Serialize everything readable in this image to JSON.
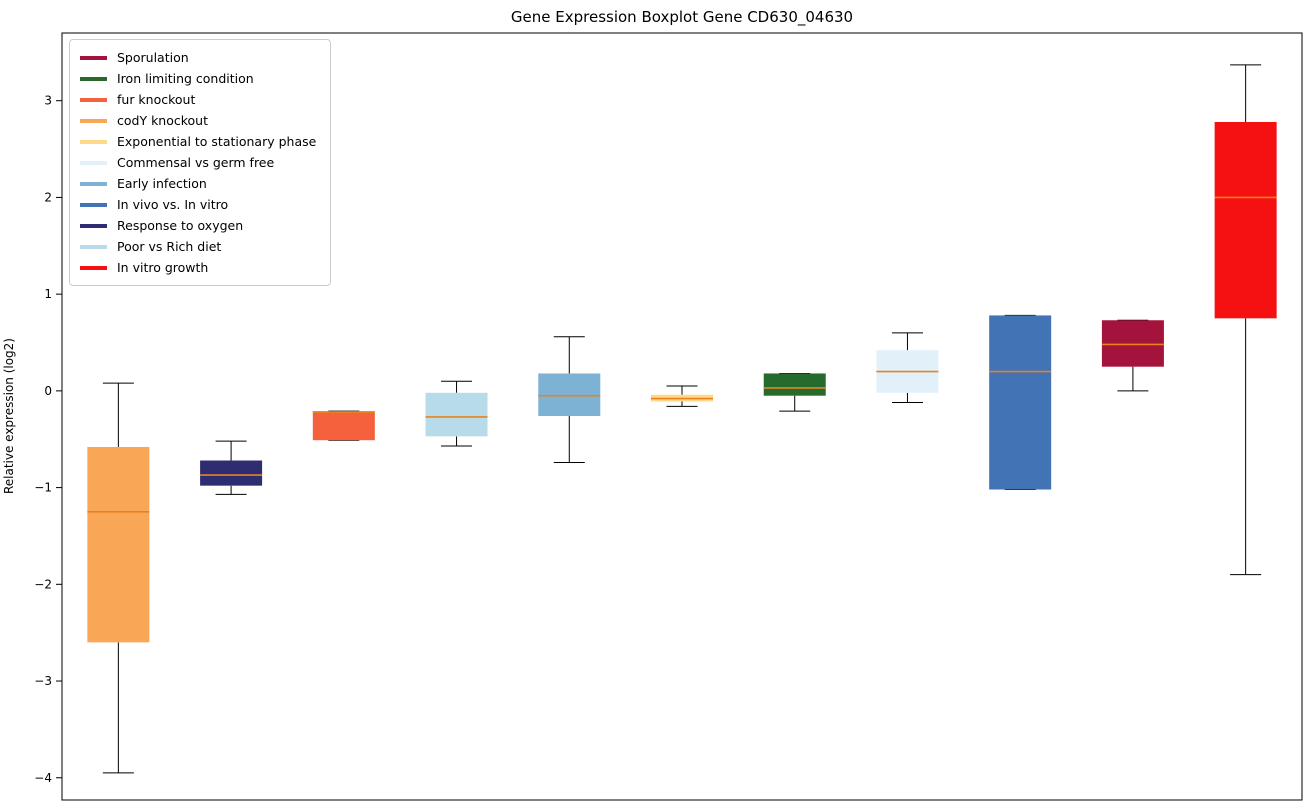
{
  "figure": {
    "title": "Gene Expression Boxplot Gene CD630_04630",
    "ylabel": "Relative expression (log2)"
  },
  "legend": {
    "items": [
      {
        "label": "Sporulation",
        "color": "#A4133C"
      },
      {
        "label": "Iron limiting condition",
        "color": "#266B2D"
      },
      {
        "label": "fur knockout",
        "color": "#F5603D"
      },
      {
        "label": "codY knockout",
        "color": "#F9A657"
      },
      {
        "label": "Exponential to stationary phase",
        "color": "#FFD98B"
      },
      {
        "label": "Commensal vs germ free",
        "color": "#E2F1F9"
      },
      {
        "label": "Early infection",
        "color": "#7EB2D4"
      },
      {
        "label": "In vivo vs. In vitro",
        "color": "#4273B4"
      },
      {
        "label": "Response to oxygen",
        "color": "#2F2D72"
      },
      {
        "label": "Poor vs Rich diet",
        "color": "#B8DBEA"
      },
      {
        "label": "In vitro growth",
        "color": "#F51111"
      }
    ]
  },
  "chart_data": {
    "type": "boxplot",
    "title": "Gene Expression Boxplot Gene CD630_04630",
    "xlabel": "",
    "ylabel": "Relative expression (log2)",
    "ylim": [
      -4.23,
      3.7
    ],
    "yticks": [
      3,
      2,
      1,
      0,
      -1,
      -2,
      -3,
      -4
    ],
    "grid": false,
    "legend_position": "upper-left",
    "series": [
      {
        "name": "codY knockout",
        "color": "#F9A657",
        "whisker_low": -3.95,
        "q1": -2.6,
        "median": -1.25,
        "q3": -0.58,
        "whisker_high": 0.08
      },
      {
        "name": "Response to oxygen",
        "color": "#2F2D72",
        "whisker_low": -1.07,
        "q1": -0.98,
        "median": -0.87,
        "q3": -0.72,
        "whisker_high": -0.52
      },
      {
        "name": "fur knockout",
        "color": "#F5603D",
        "whisker_low": -0.51,
        "q1": -0.51,
        "median": -0.22,
        "q3": -0.21,
        "whisker_high": -0.21
      },
      {
        "name": "Poor vs Rich diet",
        "color": "#B8DBEA",
        "whisker_low": -0.57,
        "q1": -0.47,
        "median": -0.27,
        "q3": -0.02,
        "whisker_high": 0.1
      },
      {
        "name": "Early infection",
        "color": "#7EB2D4",
        "whisker_low": -0.74,
        "q1": -0.26,
        "median": -0.05,
        "q3": 0.18,
        "whisker_high": 0.56
      },
      {
        "name": "Exponential to stationary phase",
        "color": "#FFD98B",
        "whisker_low": -0.16,
        "q1": -0.11,
        "median": -0.08,
        "q3": -0.04,
        "whisker_high": 0.05
      },
      {
        "name": "Iron limiting condition",
        "color": "#266B2D",
        "whisker_low": -0.21,
        "q1": -0.05,
        "median": 0.03,
        "q3": 0.18,
        "whisker_high": 0.18
      },
      {
        "name": "Commensal vs germ free",
        "color": "#E2F1F9",
        "whisker_low": -0.12,
        "q1": -0.02,
        "median": 0.2,
        "q3": 0.42,
        "whisker_high": 0.6
      },
      {
        "name": "In vivo vs. In vitro",
        "color": "#4273B4",
        "whisker_low": -1.02,
        "q1": -1.02,
        "median": 0.2,
        "q3": 0.78,
        "whisker_high": 0.78
      },
      {
        "name": "Sporulation",
        "color": "#A4133C",
        "whisker_low": 0.0,
        "q1": 0.25,
        "median": 0.48,
        "q3": 0.73,
        "whisker_high": 0.73
      },
      {
        "name": "In vitro growth",
        "color": "#F51111",
        "whisker_low": -1.9,
        "q1": 0.75,
        "median": 2.0,
        "q3": 2.78,
        "whisker_high": 3.37
      }
    ],
    "colors": {
      "median": "#E8821E",
      "whisker": "#000000",
      "frame": "#000000"
    }
  }
}
